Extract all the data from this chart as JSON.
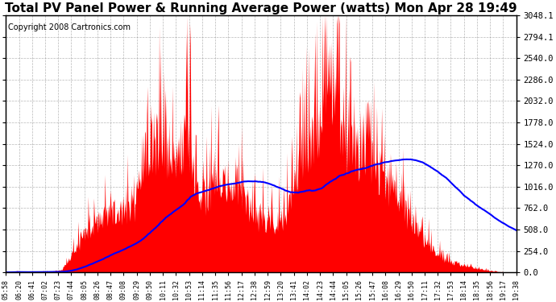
{
  "title": "Total PV Panel Power & Running Average Power (watts) Mon Apr 28 19:49",
  "copyright": "Copyright 2008 Cartronics.com",
  "yticks": [
    0.0,
    254.0,
    508.0,
    762.0,
    1016.0,
    1270.0,
    1524.0,
    1778.0,
    2032.0,
    2286.0,
    2540.0,
    2794.1,
    3048.1
  ],
  "ymax": 3048.1,
  "ymin": 0.0,
  "bar_color": "#FF0000",
  "line_color": "#0000FF",
  "background_color": "#FFFFFF",
  "grid_color": "#888888",
  "title_fontsize": 11,
  "copyright_fontsize": 7,
  "xtick_labels": [
    "05:58",
    "06:20",
    "06:41",
    "07:02",
    "07:23",
    "07:44",
    "08:05",
    "08:26",
    "08:47",
    "09:08",
    "09:29",
    "09:50",
    "10:11",
    "10:32",
    "10:53",
    "11:14",
    "11:35",
    "11:56",
    "12:17",
    "12:38",
    "12:59",
    "13:20",
    "13:41",
    "14:02",
    "14:23",
    "14:44",
    "15:05",
    "15:26",
    "15:47",
    "16:08",
    "16:29",
    "16:50",
    "17:11",
    "17:32",
    "17:53",
    "18:14",
    "18:35",
    "18:56",
    "19:17",
    "19:38"
  ]
}
